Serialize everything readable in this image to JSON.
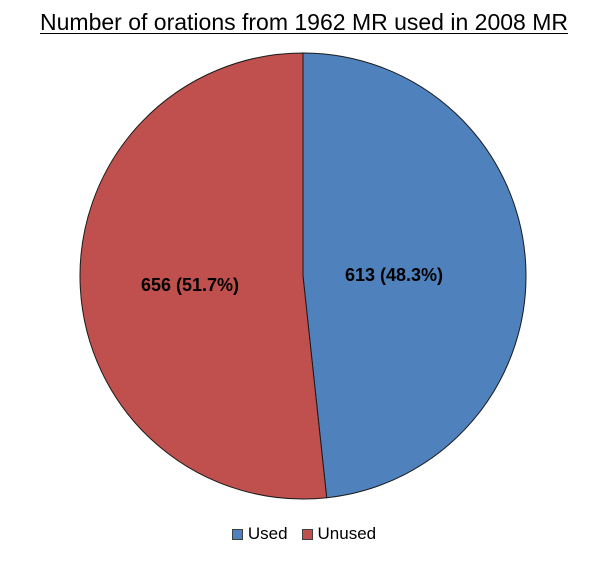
{
  "chart_data": {
    "type": "pie",
    "title": "Number of orations from 1962 MR used in 2008 MR",
    "slices": [
      {
        "label": "Used",
        "value": 613,
        "percent": "48.3%",
        "display": "613 (48.3%)",
        "color": "#4F81BD"
      },
      {
        "label": "Unused",
        "value": 656,
        "percent": "51.7%",
        "display": "656 (51.7%)",
        "color": "#C0504D"
      }
    ],
    "legend_position": "bottom",
    "start_angle": "top, clockwise"
  }
}
